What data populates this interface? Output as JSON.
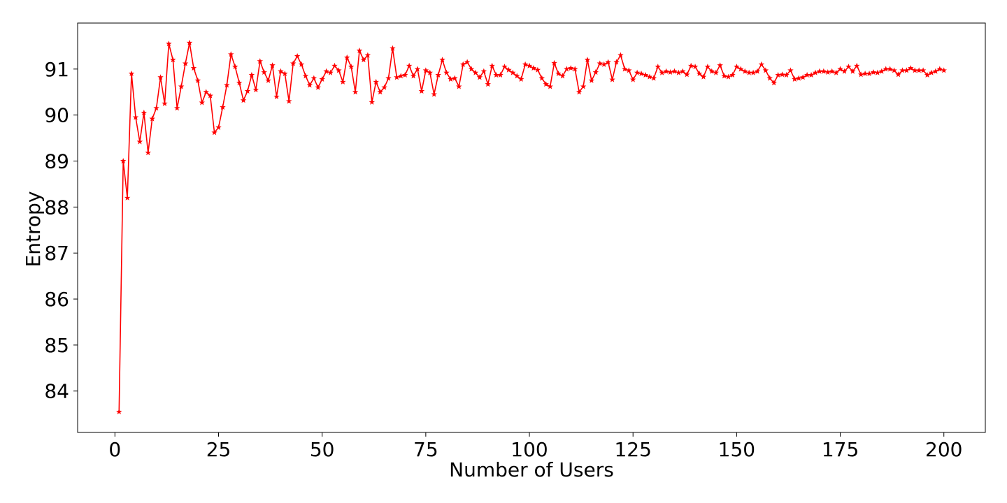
{
  "chart_data": {
    "type": "line",
    "title": "",
    "xlabel": "Number of Users",
    "ylabel": "Entropy",
    "xlim": [
      -9,
      210
    ],
    "ylim": [
      83.1,
      92.0
    ],
    "xticks": [
      0,
      25,
      50,
      75,
      100,
      125,
      150,
      175,
      200
    ],
    "xtick_labels": [
      "0",
      "25",
      "50",
      "75",
      "100",
      "125",
      "150",
      "175",
      "200"
    ],
    "yticks": [
      84,
      85,
      86,
      87,
      88,
      89,
      90,
      91
    ],
    "ytick_labels": [
      "84",
      "85",
      "86",
      "87",
      "88",
      "89",
      "90",
      "91"
    ],
    "grid": false,
    "legend": "none",
    "color": "#ff0000",
    "marker": "star",
    "series": [
      {
        "x": [
          1,
          2,
          3,
          4,
          5,
          6,
          7,
          8,
          9,
          10,
          11,
          12,
          13,
          14,
          15,
          16,
          17,
          18,
          19,
          20,
          21,
          22,
          23,
          24,
          25,
          26,
          27,
          28,
          29,
          30,
          31,
          32,
          33,
          34,
          35,
          36,
          37,
          38,
          39,
          40,
          41,
          42,
          43,
          44,
          45,
          46,
          47,
          48,
          49,
          50,
          51,
          52,
          53,
          54,
          55,
          56,
          57,
          58,
          59,
          60,
          61,
          62,
          63,
          64,
          65,
          66,
          67,
          68,
          69,
          70,
          71,
          72,
          73,
          74,
          75,
          76,
          77,
          78,
          79,
          80,
          81,
          82,
          83,
          84,
          85,
          86,
          87,
          88,
          89,
          90,
          91,
          92,
          93,
          94,
          95,
          96,
          97,
          98,
          99,
          100,
          101,
          102,
          103,
          104,
          105,
          106,
          107,
          108,
          109,
          110,
          111,
          112,
          113,
          114,
          115,
          116,
          117,
          118,
          119,
          120,
          121,
          122,
          123,
          124,
          125,
          126,
          127,
          128,
          129,
          130,
          131,
          132,
          133,
          134,
          135,
          136,
          137,
          138,
          139,
          140,
          141,
          142,
          143,
          144,
          145,
          146,
          147,
          148,
          149,
          150,
          151,
          152,
          153,
          154,
          155,
          156,
          157,
          158,
          159,
          160,
          161,
          162,
          163,
          164,
          165,
          166,
          167,
          168,
          169,
          170,
          171,
          172,
          173,
          174,
          175,
          176,
          177,
          178,
          179,
          180,
          181,
          182,
          183,
          184,
          185,
          186,
          187,
          188,
          189,
          190,
          191,
          192,
          193,
          194,
          195,
          196,
          197,
          198,
          199,
          200
        ],
        "values": [
          83.55,
          89.0,
          88.2,
          90.9,
          89.95,
          89.42,
          90.05,
          89.18,
          89.92,
          90.15,
          90.82,
          90.25,
          91.55,
          91.2,
          90.15,
          90.62,
          91.12,
          91.57,
          91.02,
          90.75,
          90.27,
          90.5,
          90.42,
          89.62,
          89.73,
          90.17,
          90.65,
          91.32,
          91.05,
          90.7,
          90.32,
          90.52,
          90.87,
          90.55,
          91.17,
          90.93,
          90.75,
          91.08,
          90.4,
          90.95,
          90.9,
          90.3,
          91.12,
          91.28,
          91.1,
          90.85,
          90.65,
          90.8,
          90.6,
          90.78,
          90.95,
          90.92,
          91.07,
          90.97,
          90.72,
          91.25,
          91.05,
          90.5,
          91.4,
          91.2,
          91.3,
          90.28,
          90.72,
          90.5,
          90.6,
          90.8,
          91.45,
          90.82,
          90.85,
          90.87,
          91.07,
          90.85,
          91.0,
          90.52,
          90.97,
          90.92,
          90.45,
          90.87,
          91.2,
          90.92,
          90.78,
          90.8,
          90.62,
          91.1,
          91.15,
          91.0,
          90.92,
          90.82,
          90.95,
          90.67,
          91.07,
          90.87,
          90.87,
          91.05,
          90.98,
          90.92,
          90.85,
          90.78,
          91.1,
          91.07,
          91.02,
          90.98,
          90.8,
          90.67,
          90.62,
          91.13,
          90.9,
          90.85,
          91.0,
          91.02,
          91.0,
          90.5,
          90.62,
          91.2,
          90.75,
          90.93,
          91.12,
          91.1,
          91.15,
          90.77,
          91.15,
          91.3,
          91.0,
          90.97,
          90.77,
          90.92,
          90.9,
          90.87,
          90.83,
          90.8,
          91.05,
          90.92,
          90.95,
          90.93,
          90.95,
          90.92,
          90.95,
          90.88,
          91.07,
          91.05,
          90.9,
          90.83,
          91.05,
          90.95,
          90.92,
          91.08,
          90.85,
          90.83,
          90.87,
          91.05,
          91.0,
          90.95,
          90.92,
          90.92,
          90.95,
          91.1,
          90.97,
          90.8,
          90.7,
          90.87,
          90.88,
          90.87,
          90.97,
          90.78,
          90.8,
          90.82,
          90.87,
          90.87,
          90.92,
          90.95,
          90.95,
          90.93,
          90.95,
          90.92,
          91.0,
          90.95,
          91.05,
          90.95,
          91.07,
          90.88,
          90.9,
          90.9,
          90.93,
          90.92,
          90.95,
          91.0,
          91.0,
          90.97,
          90.88,
          90.97,
          90.97,
          91.02,
          90.97,
          90.97,
          90.97,
          90.87,
          90.92,
          90.95,
          91.0,
          90.97
        ]
      }
    ]
  }
}
